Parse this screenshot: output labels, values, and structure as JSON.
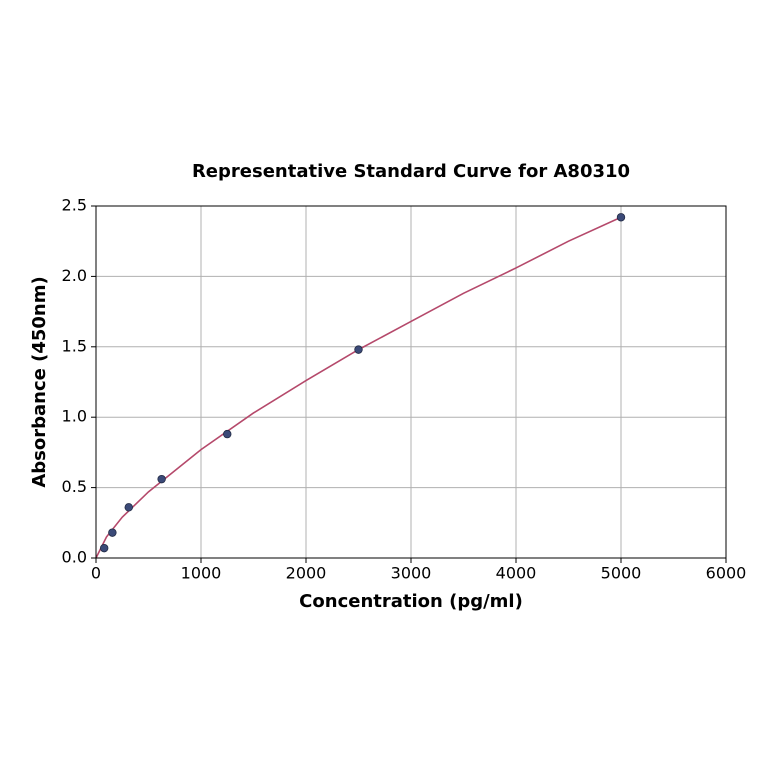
{
  "chart_data": {
    "type": "scatter",
    "title": "Representative Standard Curve for A80310",
    "x_label": "Concentration (pg/ml)",
    "y_label": "Absorbance (450nm)",
    "points": {
      "color": "#3b4a78",
      "x": [
        78,
        156,
        312,
        625,
        1250,
        2500,
        5000
      ],
      "y": [
        0.07,
        0.18,
        0.36,
        0.56,
        0.88,
        1.48,
        2.42
      ]
    },
    "curve": {
      "color": "#b5496b",
      "x": [
        0,
        100,
        250,
        500,
        1000,
        1500,
        2000,
        2500,
        3000,
        3500,
        4000,
        4500,
        5000
      ],
      "y": [
        0,
        0.15,
        0.29,
        0.47,
        0.77,
        1.03,
        1.26,
        1.48,
        1.68,
        1.88,
        2.06,
        2.25,
        2.42
      ]
    },
    "xlim": [
      0,
      6000
    ],
    "xticks": [
      0,
      1000,
      2000,
      3000,
      4000,
      5000,
      6000
    ],
    "ylim": [
      0,
      2.5
    ],
    "yticks": [
      {
        "value": 0,
        "label": "0.0"
      },
      0.5,
      {
        "value": 1,
        "label": "1.0"
      },
      1.5,
      {
        "value": 2,
        "label": "2.0"
      },
      2.5
    ],
    "grid": true
  }
}
